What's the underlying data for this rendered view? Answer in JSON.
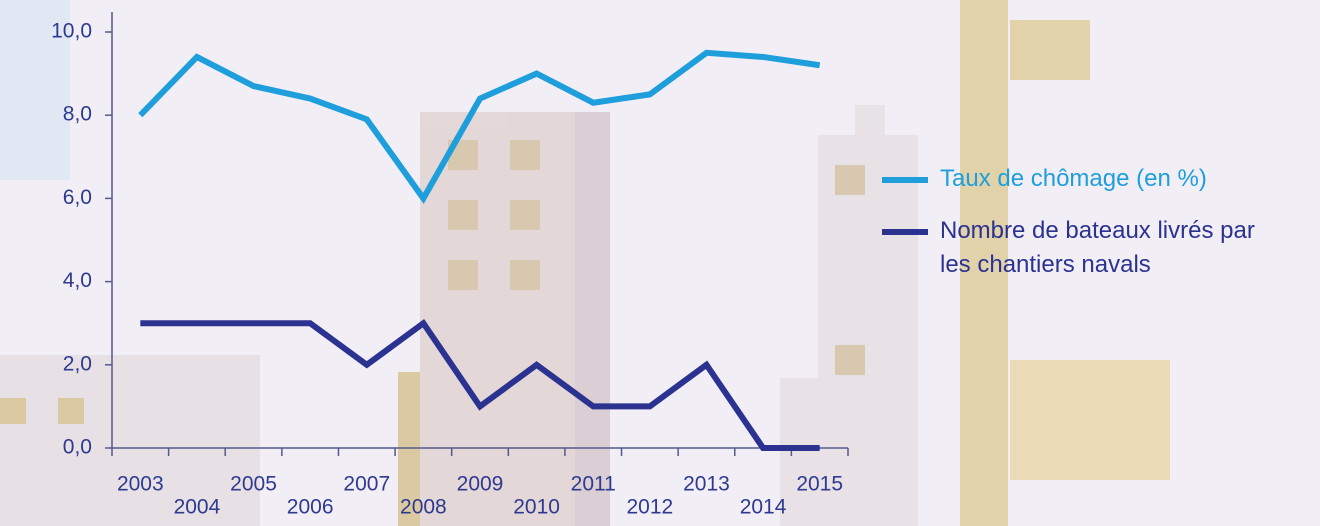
{
  "chart_data": {
    "type": "line",
    "categories": [
      "2003",
      "2004",
      "2005",
      "2006",
      "2007",
      "2008",
      "2009",
      "2010",
      "2011",
      "2012",
      "2013",
      "2014",
      "2015"
    ],
    "series": [
      {
        "name": "Taux de chômage (en %)",
        "color": "#1e9fdc",
        "values": [
          8.0,
          9.4,
          8.7,
          8.4,
          7.9,
          6.0,
          8.4,
          9.0,
          8.3,
          8.5,
          9.5,
          9.4,
          9.2
        ]
      },
      {
        "name": "Nombre de bateaux livrés par les chantiers navals",
        "color": "#2b3290",
        "values": [
          3,
          3,
          3,
          3,
          2,
          3,
          1,
          2,
          1,
          1,
          2,
          0,
          0
        ]
      }
    ],
    "ylim": [
      0,
      10
    ],
    "yticks": [
      {
        "value": 0,
        "label": "0,0"
      },
      {
        "value": 2,
        "label": "2,0"
      },
      {
        "value": 4,
        "label": "4,0"
      },
      {
        "value": 6,
        "label": "6,0"
      },
      {
        "value": 8,
        "label": "8,0"
      },
      {
        "value": 10,
        "label": "10,0"
      }
    ]
  }
}
